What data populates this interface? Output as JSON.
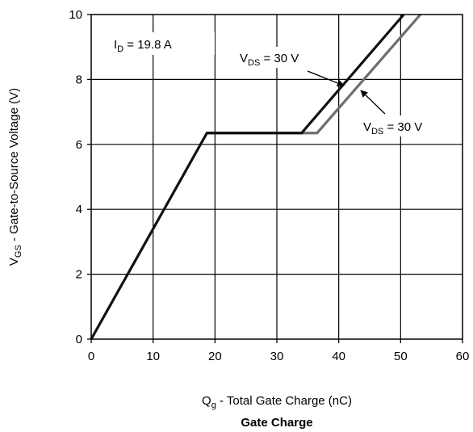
{
  "chart_data": {
    "type": "line",
    "title": "Gate Charge",
    "xlabel": {
      "main": "Q",
      "sub": "g",
      "rest": " - Total Gate Charge (nC)"
    },
    "ylabel": {
      "main": "V",
      "sub": "GS",
      "rest": " - Gate-to-Source Voltage (V)"
    },
    "xlim": [
      0,
      60
    ],
    "ylim": [
      0,
      10
    ],
    "xticks": [
      0,
      10,
      20,
      30,
      40,
      50,
      60
    ],
    "yticks": [
      0,
      2,
      4,
      6,
      8,
      10
    ],
    "grid": true,
    "series": [
      {
        "color": "#111111",
        "points": [
          [
            0,
            0
          ],
          [
            18.7,
            6.35
          ],
          [
            34.0,
            6.35
          ],
          [
            50.5,
            10.0
          ]
        ]
      },
      {
        "color": "#6e6e6e",
        "points": [
          [
            18.7,
            6.35
          ],
          [
            36.5,
            6.35
          ],
          [
            53.2,
            10.0
          ]
        ]
      }
    ],
    "annotations": [
      {
        "id": "id",
        "main": "I",
        "sub": "D",
        "rest": " = 19.8 A"
      },
      {
        "id": "vds-upper",
        "main": "V",
        "sub": "DS",
        "rest": " = 30 V"
      },
      {
        "id": "vds-lower",
        "main": "V",
        "sub": "DS",
        "rest": " = 30 V"
      }
    ]
  }
}
